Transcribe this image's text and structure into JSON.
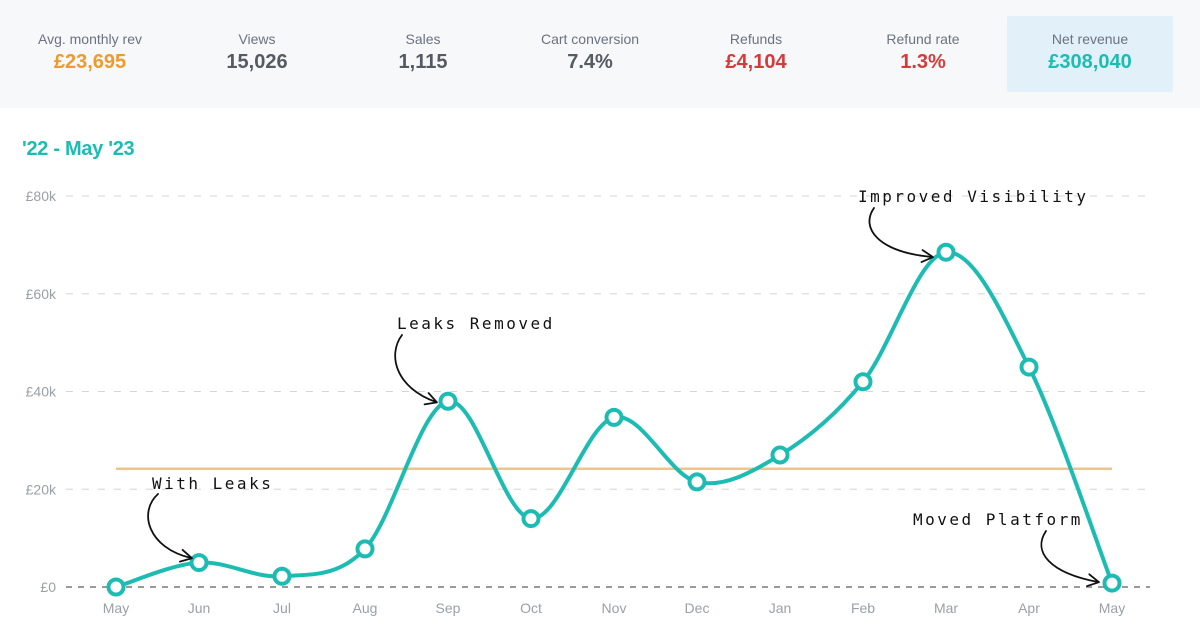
{
  "stats": [
    {
      "label": "Avg. monthly rev",
      "value": "£23,695",
      "tone": "orange"
    },
    {
      "label": "Views",
      "value": "15,026",
      "tone": "gray"
    },
    {
      "label": "Sales",
      "value": "1,115",
      "tone": "gray"
    },
    {
      "label": "Cart conversion",
      "value": "7.4%",
      "tone": "gray"
    },
    {
      "label": "Refunds",
      "value": "£4,104",
      "tone": "red"
    },
    {
      "label": "Refund rate",
      "value": "1.3%",
      "tone": "red"
    },
    {
      "label": "Net revenue",
      "value": "£308,040",
      "tone": "teal"
    }
  ],
  "chart_data": {
    "type": "line",
    "title": "'22 - May '23",
    "categories": [
      "May",
      "Jun",
      "Jul",
      "Aug",
      "Sep",
      "Oct",
      "Nov",
      "Dec",
      "Jan",
      "Feb",
      "Mar",
      "Apr",
      "May"
    ],
    "series": [
      {
        "values": [
          0,
          5000,
          2200,
          7800,
          38000,
          14000,
          34700,
          21500,
          27000,
          42000,
          68500,
          45000,
          800
        ]
      }
    ],
    "yticks": [
      0,
      20000,
      40000,
      60000,
      80000
    ],
    "ytick_labels": [
      "£0",
      "£20k",
      "£40k",
      "£60k",
      "£80k"
    ],
    "ylim": [
      0,
      80000
    ],
    "average_line": 24200,
    "grid": true,
    "line_color": "#1dbcb3",
    "average_color": "#ecc48e",
    "annotations": [
      {
        "text": "With Leaks",
        "index": 1
      },
      {
        "text": "Leaks Removed",
        "index": 4
      },
      {
        "text": "Improved Visibility",
        "index": 10
      },
      {
        "text": "Moved Platform",
        "index": 12
      }
    ]
  }
}
